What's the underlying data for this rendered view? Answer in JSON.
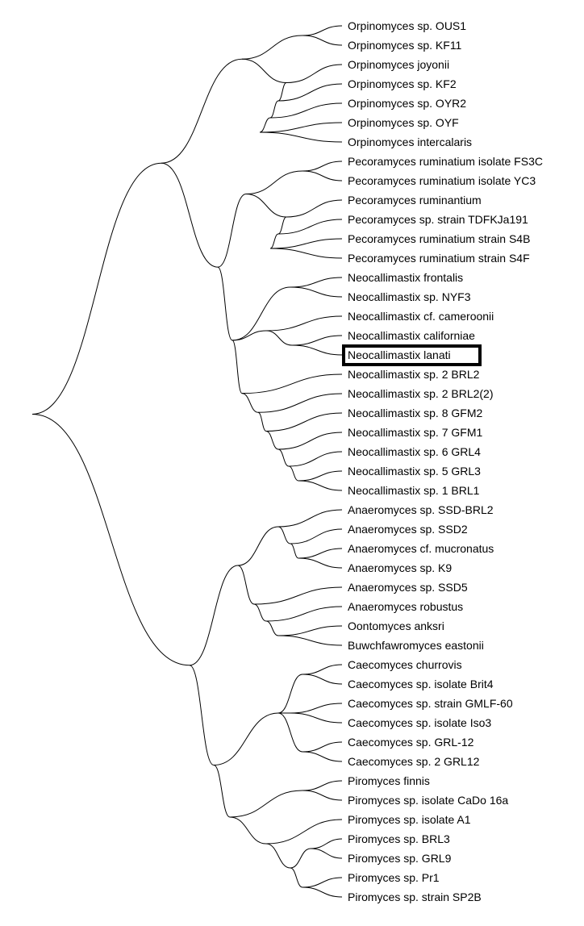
{
  "tree": {
    "leaves": [
      "Orpinomyces sp. OUS1",
      "Orpinomyces sp. KF11",
      "Orpinomyces joyonii",
      "Orpinomyces sp. KF2",
      "Orpinomyces sp. OYR2",
      "Orpinomyces sp. OYF",
      "Orpinomyces intercalaris",
      "Pecoramyces ruminatium isolate FS3C",
      "Pecoramyces ruminatium isolate YC3",
      "Pecoramyces ruminantium",
      "Pecoramyces sp. strain TDFKJa191",
      "Pecoramyces ruminatium strain S4B",
      "Pecoramyces ruminatium strain S4F",
      "Neocallimastix frontalis",
      "Neocallimastix sp. NYF3",
      "Neocallimastix cf. cameroonii",
      "Neocallimastix californiae",
      "Neocallimastix lanati",
      "Neocallimastix sp. 2 BRL2",
      "Neocallimastix sp. 2 BRL2(2)",
      "Neocallimastix sp. 8 GFM2",
      "Neocallimastix sp. 7 GFM1",
      "Neocallimastix sp. 6 GRL4",
      "Neocallimastix sp. 5 GRL3",
      "Neocallimastix sp. 1 BRL1",
      "Anaeromyces sp. SSD-BRL2",
      "Anaeromyces sp. SSD2",
      "Anaeromyces cf. mucronatus",
      "Anaeromyces sp. K9",
      "Anaeromyces sp. SSD5",
      "Anaeromyces robustus",
      "Oontomyces anksri",
      "Buwchfawromyces eastonii",
      "Caecomyces churrovis",
      "Caecomyces sp. isolate Brit4",
      "Caecomyces sp. strain GMLF-60",
      "Caecomyces sp. isolate Iso3",
      "Caecomyces sp. GRL-12",
      "Caecomyces sp. 2 GRL12",
      "Piromyces finnis",
      "Piromyces sp. isolate CaDo 16a",
      "Piromyces sp. isolate A1",
      "Piromyces sp. BRL3",
      "Piromyces sp. GRL9",
      "Piromyces sp. Pr1",
      "Piromyces sp. strain SP2B"
    ],
    "highlighted_leaf": 17,
    "line_color": "#000000",
    "highlight_color": "#000000"
  }
}
